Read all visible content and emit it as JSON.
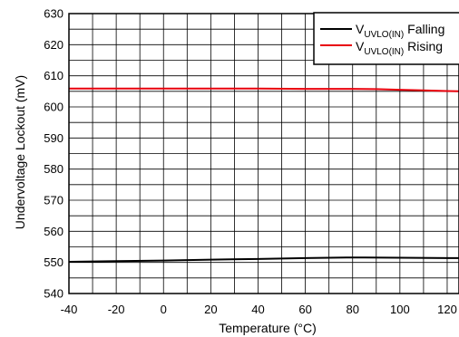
{
  "chart_data": {
    "type": "line",
    "xlabel": "Temperature (°C)",
    "ylabel": "Undervoltage Lockout (mV)",
    "xlim": [
      -40,
      125
    ],
    "ylim": [
      540,
      630
    ],
    "x_ticks": [
      "-40",
      "-20",
      "0",
      "20",
      "40",
      "60",
      "80",
      "100",
      "120"
    ],
    "y_ticks": [
      "540",
      "550",
      "560",
      "570",
      "580",
      "590",
      "600",
      "610",
      "620",
      "630"
    ],
    "grid": true,
    "legend_position": "top-right",
    "series": [
      {
        "name_main": "V",
        "name_sub": "UVLO(IN)",
        "name_suffix": " Falling",
        "color": "#000000",
        "x": [
          -40,
          -20,
          0,
          20,
          40,
          60,
          80,
          85,
          100,
          120,
          125
        ],
        "y": [
          550.2,
          550.4,
          550.6,
          550.9,
          551.1,
          551.4,
          551.6,
          551.6,
          551.5,
          551.4,
          551.4
        ]
      },
      {
        "name_main": "V",
        "name_sub": "UVLO(IN)",
        "name_suffix": " Rising",
        "color": "#e8000b",
        "x": [
          -40,
          -20,
          0,
          20,
          40,
          60,
          80,
          90,
          100,
          110,
          120,
          125
        ],
        "y": [
          605.9,
          605.9,
          605.9,
          605.9,
          605.9,
          605.8,
          605.8,
          605.7,
          605.5,
          605.3,
          605.1,
          605.0
        ]
      }
    ]
  }
}
